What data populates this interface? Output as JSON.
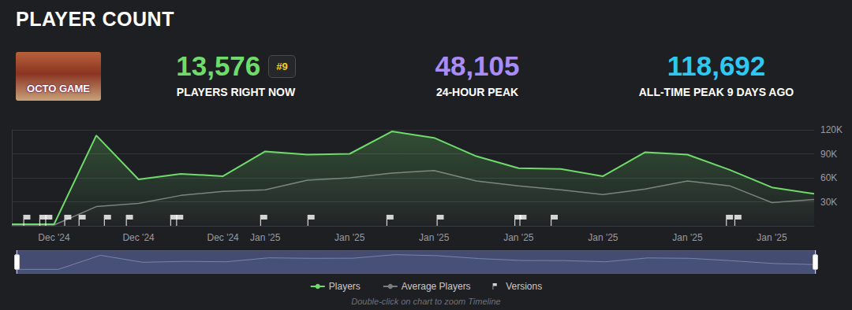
{
  "header": {
    "title": "PLAYER COUNT",
    "thumbnail_text": "OCTO GAME",
    "stats": [
      {
        "value": "13,576",
        "label": "PLAYERS RIGHT NOW",
        "rank": "#9",
        "color": "#6edb6a"
      },
      {
        "value": "48,105",
        "label": "24-HOUR PEAK",
        "color": "#a98cf5"
      },
      {
        "value": "118,692",
        "label": "ALL-TIME PEAK 9 DAYS AGO",
        "color": "#2ec8f2"
      }
    ]
  },
  "chart_data": {
    "type": "line",
    "categories": [
      null,
      "Dec '24",
      null,
      "Dec '24",
      null,
      "Dec '24",
      "Jan '25",
      null,
      "Jan '25",
      null,
      "Jan '25",
      null,
      "Jan '25",
      null,
      "Jan '25",
      null,
      "Jan '25",
      null,
      "Jan '25",
      null
    ],
    "series": [
      {
        "name": "Players",
        "color": "#6edb6a",
        "values": [
          2000,
          2000,
          113000,
          58000,
          65000,
          62000,
          93000,
          89000,
          90000,
          118000,
          110000,
          87000,
          72000,
          71000,
          62000,
          92000,
          89000,
          70000,
          48000,
          40000
        ]
      },
      {
        "name": "Average Players",
        "color": "#7c7c80",
        "values": [
          1000,
          1000,
          24000,
          28000,
          38000,
          43000,
          45000,
          57000,
          60000,
          66000,
          69000,
          56000,
          50000,
          45000,
          39000,
          46000,
          56000,
          50000,
          29000,
          33000
        ]
      }
    ],
    "versions": {
      "name": "Versions",
      "color": "#ffffff",
      "marker": "flag",
      "x": [
        0.28,
        0.66,
        0.8,
        1.25,
        1.59,
        2.19,
        2.71,
        3.76,
        3.9,
        5.89,
        7.01,
        8.88,
        10.07,
        11.91,
        12.03,
        12.77,
        16.92,
        17.12
      ]
    },
    "ylim": [
      0,
      120000
    ],
    "yticks": [
      {
        "value": 30000,
        "label": "30K"
      },
      {
        "value": 60000,
        "label": "60K"
      },
      {
        "value": 90000,
        "label": "90K"
      },
      {
        "value": 120000,
        "label": "120K"
      }
    ],
    "grid": true,
    "legend": "bottom"
  },
  "footer_note": "Double-click on chart to zoom Timeline"
}
